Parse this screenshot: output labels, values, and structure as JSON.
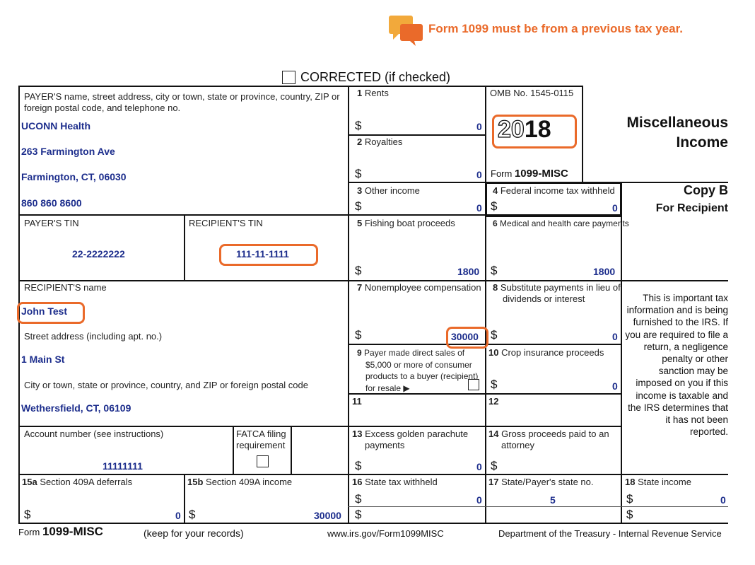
{
  "notice": {
    "icon": "speech-bubbles-icon",
    "text": "Form 1099 must be from a previous tax year.",
    "accent": "#ea6a2a"
  },
  "corrected_label": "CORRECTED (if checked)",
  "payer": {
    "label": "PAYER'S name, street address, city or town, state or province, country, ZIP or foreign postal code, and telephone no.",
    "name": "UCONN Health",
    "street": "263 Farmington Ave",
    "city": "Farmington, CT, 06030",
    "phone": "860 860 8600"
  },
  "payer_tin": {
    "label": "PAYER'S TIN",
    "value": "22-2222222"
  },
  "recipient_tin": {
    "label": "RECIPIENT'S TIN",
    "value": "111-11-1111"
  },
  "recipient": {
    "name_label": "RECIPIENT'S name",
    "name": "John Test",
    "street_label": "Street address (including apt. no.)",
    "street": "1 Main St",
    "city_label": "City or town, state or province, country, and ZIP or foreign postal code",
    "city": "Wethersfield, CT, 06109"
  },
  "account": {
    "label": "Account number (see instructions)",
    "value": "11111111"
  },
  "fatca": {
    "label": "FATCA filing requirement"
  },
  "boxes": {
    "b1": {
      "num": "1",
      "label": "Rents",
      "value": "0"
    },
    "b2": {
      "num": "2",
      "label": "Royalties",
      "value": "0"
    },
    "b3": {
      "num": "3",
      "label": "Other income",
      "value": "0"
    },
    "b4": {
      "num": "4",
      "label": "Federal income tax withheld",
      "value": "0"
    },
    "b5": {
      "num": "5",
      "label": "Fishing boat proceeds",
      "value": "1800"
    },
    "b6": {
      "num": "6",
      "label": "Medical and health care payments",
      "value": "1800"
    },
    "b7": {
      "num": "7",
      "label": "Nonemployee compensation",
      "value": "30000"
    },
    "b8": {
      "num": "8",
      "label": "Substitute payments in lieu of dividends or interest",
      "value": "0"
    },
    "b9": {
      "num": "9",
      "label": "Payer made direct sales of $5,000 or more of consumer products to a buyer (recipient) for resale ▶"
    },
    "b10": {
      "num": "10",
      "label": "Crop insurance proceeds",
      "value": "0"
    },
    "b11": {
      "num": "11"
    },
    "b12": {
      "num": "12"
    },
    "b13": {
      "num": "13",
      "label": "Excess golden parachute payments",
      "value": "0"
    },
    "b14": {
      "num": "14",
      "label": "Gross proceeds paid to an attorney"
    },
    "b15a": {
      "num": "15a",
      "label": "Section 409A deferrals",
      "value": "0"
    },
    "b15b": {
      "num": "15b",
      "label": "Section 409A income",
      "value": "30000"
    },
    "b16": {
      "num": "16",
      "label": "State tax withheld",
      "value": "0"
    },
    "b17": {
      "num": "17",
      "label": "State/Payer's state no.",
      "value": "5"
    },
    "b18": {
      "num": "18",
      "label": "State income",
      "value": "0"
    }
  },
  "currency": "$",
  "omb": "OMB No. 1545-0115",
  "year_prefix": "20",
  "year_suffix": "18",
  "form_name_prefix": "Form",
  "form_name": "1099-MISC",
  "title_line1": "Miscellaneous",
  "title_line2": "Income",
  "copy_title": "Copy B",
  "copy_sub": "For Recipient",
  "side_note": "This is important tax information and is being furnished to the IRS. If you are required to file a return, a negligence penalty or other sanction may be imposed on you if this income is taxable and the IRS determines that it has not been reported.",
  "footer": {
    "keep": "(keep for your records)",
    "url": "www.irs.gov/Form1099MISC",
    "dept": "Department of the Treasury - Internal Revenue Service"
  }
}
